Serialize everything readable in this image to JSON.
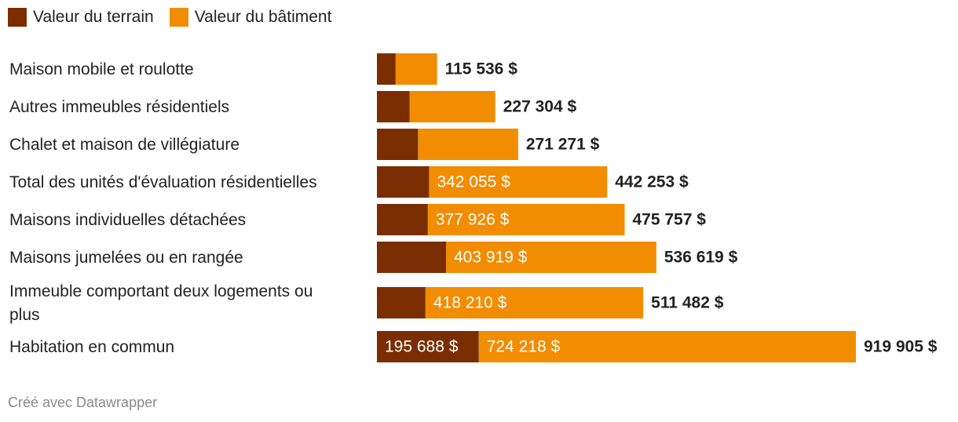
{
  "legend": {
    "items": [
      {
        "label": "Valeur du terrain",
        "color": "#7a2e00"
      },
      {
        "label": "Valeur du bâtiment",
        "color": "#f28c00"
      }
    ]
  },
  "footer": {
    "credit": "Créé avec Datawrapper"
  },
  "chart_data": {
    "type": "bar",
    "orientation": "horizontal",
    "stacked": true,
    "title": "",
    "xlabel": "",
    "ylabel": "",
    "xlim": [
      0,
      919905
    ],
    "grid": false,
    "legend_position": "top-left",
    "categories": [
      [
        "Maison mobile et roulotte"
      ],
      [
        "Autres immeubles résidentiels"
      ],
      [
        "Chalet et maison de villégiature"
      ],
      [
        "Total des unités d'évaluation résidentielles"
      ],
      [
        "Maisons individuelles détachées"
      ],
      [
        "Maisons jumelées ou en rangée"
      ],
      [
        "Immeuble comportant deux logements ou",
        "plus"
      ],
      [
        "Habitation en commun"
      ]
    ],
    "series": [
      {
        "name": "Valeur du terrain",
        "color": "#7a2e00",
        "values": [
          36000,
          63000,
          79000,
          100198,
          97831,
          132700,
          93272,
          195688
        ],
        "labels": [
          "",
          "",
          "",
          "",
          "",
          "",
          "",
          "195 688 $"
        ]
      },
      {
        "name": "Valeur du bâtiment",
        "color": "#f28c00",
        "values": [
          79536,
          164304,
          192271,
          342055,
          377926,
          403919,
          418210,
          724218
        ],
        "labels": [
          "",
          "",
          "",
          "342 055 $",
          "377 926 $",
          "403 919 $",
          "418 210 $",
          "724 218 $"
        ]
      }
    ],
    "totals": [
      115536,
      227304,
      271271,
      442253,
      475757,
      536619,
      511482,
      919905
    ],
    "total_labels": [
      "115 536 $",
      "227 304 $",
      "271 271 $",
      "442 253 $",
      "475 757 $",
      "536 619 $",
      "511 482 $",
      "919 905 $"
    ]
  }
}
